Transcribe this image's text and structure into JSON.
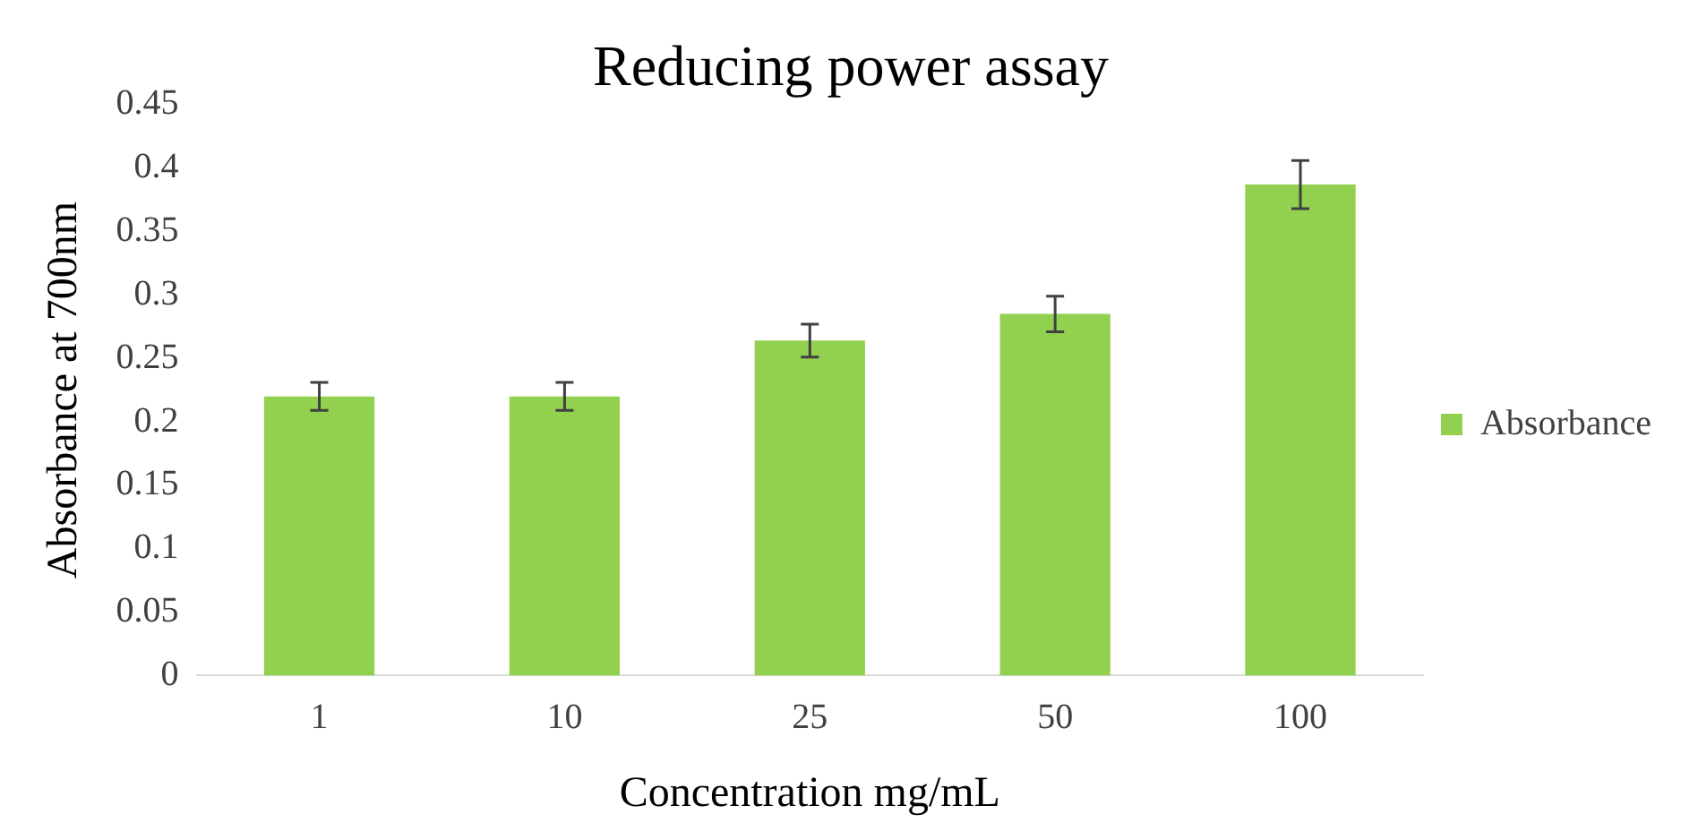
{
  "chart_data": {
    "type": "bar",
    "title": "Reducing power assay",
    "xlabel": "Concentration mg/mL",
    "ylabel": "Absorbance at 700nm",
    "categories": [
      "1",
      "10",
      "25",
      "50",
      "100"
    ],
    "series": [
      {
        "name": "Absorbance",
        "color": "#92d050",
        "values": [
          0.22,
          0.22,
          0.264,
          0.285,
          0.387
        ],
        "errors": [
          0.011,
          0.011,
          0.013,
          0.014,
          0.019
        ]
      }
    ],
    "ylim": [
      0,
      0.45
    ],
    "yticks": [
      0,
      0.05,
      0.1,
      0.15,
      0.2,
      0.25,
      0.3,
      0.35,
      0.4,
      0.45
    ],
    "grid": false,
    "legend": "right"
  }
}
